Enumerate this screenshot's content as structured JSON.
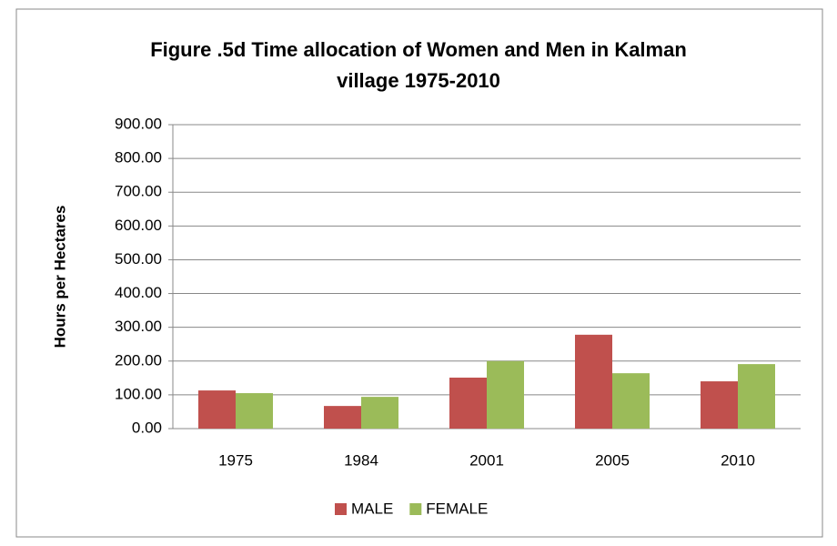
{
  "chart_data": {
    "type": "bar",
    "title": "Figure .5d Time allocation of Women and Men in Kalman village 1975-2010",
    "y_label": "Hours per Hectares",
    "categories": [
      "1975",
      "1984",
      "2001",
      "2005",
      "2010"
    ],
    "series": [
      {
        "name": "MALE",
        "color": "#c0504d",
        "values": [
          113,
          67,
          151,
          278,
          140
        ]
      },
      {
        "name": "FEMALE",
        "color": "#9bbb59",
        "values": [
          105,
          94,
          200,
          164,
          191
        ]
      }
    ],
    "ylim": [
      0,
      900
    ],
    "yticks": [
      {
        "value": 0,
        "label": "0.00"
      },
      {
        "value": 100,
        "label": "100.00"
      },
      {
        "value": 200,
        "label": "200.00"
      },
      {
        "value": 300,
        "label": "300.00"
      },
      {
        "value": 400,
        "label": "400.00"
      },
      {
        "value": 500,
        "label": "500.00"
      },
      {
        "value": 600,
        "label": "600.00"
      },
      {
        "value": 700,
        "label": "700.00"
      },
      {
        "value": 800,
        "label": "800.00"
      },
      {
        "value": 900,
        "label": "900.00"
      }
    ],
    "grid": true,
    "legend": "bottom"
  }
}
